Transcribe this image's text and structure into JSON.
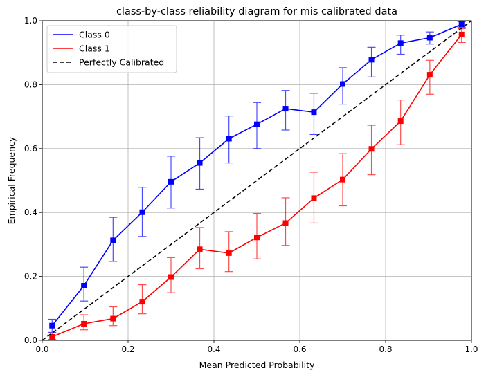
{
  "chart_data": {
    "type": "line",
    "title": "class-by-class reliability diagram for mis calibrated data",
    "xlabel": "Mean Predicted Probability",
    "ylabel": "Empirical Frequency",
    "xlim": [
      0,
      1
    ],
    "ylim": [
      0,
      1
    ],
    "xticks": [
      "0.0",
      "0.2",
      "0.4",
      "0.6",
      "0.8",
      "1.0"
    ],
    "yticks": [
      "0.0",
      "0.2",
      "0.4",
      "0.6",
      "0.8",
      "1.0"
    ],
    "grid": true,
    "legend_position": "top-left",
    "series": [
      {
        "name": "Class 0",
        "color": "#0000ff",
        "marker": "square",
        "x": [
          0.023,
          0.097,
          0.165,
          0.233,
          0.3,
          0.367,
          0.435,
          0.5,
          0.567,
          0.633,
          0.7,
          0.767,
          0.835,
          0.903,
          0.977
        ],
        "y": [
          0.046,
          0.171,
          0.313,
          0.401,
          0.496,
          0.555,
          0.631,
          0.676,
          0.725,
          0.714,
          0.802,
          0.878,
          0.93,
          0.947,
          0.989
        ],
        "err_low": [
          0.025,
          0.123,
          0.247,
          0.325,
          0.414,
          0.473,
          0.555,
          0.6,
          0.658,
          0.644,
          0.739,
          0.824,
          0.895,
          0.927,
          0.98
        ],
        "err_high": [
          0.066,
          0.229,
          0.385,
          0.479,
          0.576,
          0.634,
          0.702,
          0.744,
          0.782,
          0.773,
          0.853,
          0.917,
          0.955,
          0.965,
          0.997
        ]
      },
      {
        "name": "Class 1",
        "color": "#ff0000",
        "marker": "square",
        "x": [
          0.023,
          0.097,
          0.165,
          0.233,
          0.3,
          0.367,
          0.435,
          0.5,
          0.567,
          0.633,
          0.7,
          0.767,
          0.835,
          0.903,
          0.977
        ],
        "y": [
          0.011,
          0.052,
          0.068,
          0.121,
          0.198,
          0.285,
          0.273,
          0.322,
          0.367,
          0.445,
          0.503,
          0.599,
          0.686,
          0.831,
          0.957
        ],
        "err_low": [
          0.003,
          0.033,
          0.046,
          0.083,
          0.149,
          0.224,
          0.215,
          0.255,
          0.297,
          0.367,
          0.421,
          0.518,
          0.612,
          0.77,
          0.932
        ],
        "err_high": [
          0.023,
          0.08,
          0.105,
          0.174,
          0.259,
          0.353,
          0.34,
          0.397,
          0.446,
          0.526,
          0.584,
          0.673,
          0.752,
          0.876,
          0.975
        ]
      },
      {
        "name": "Perfectly Calibrated",
        "color": "#000000",
        "style": "dashed",
        "x": [
          0,
          1
        ],
        "y": [
          0,
          1
        ]
      }
    ]
  }
}
